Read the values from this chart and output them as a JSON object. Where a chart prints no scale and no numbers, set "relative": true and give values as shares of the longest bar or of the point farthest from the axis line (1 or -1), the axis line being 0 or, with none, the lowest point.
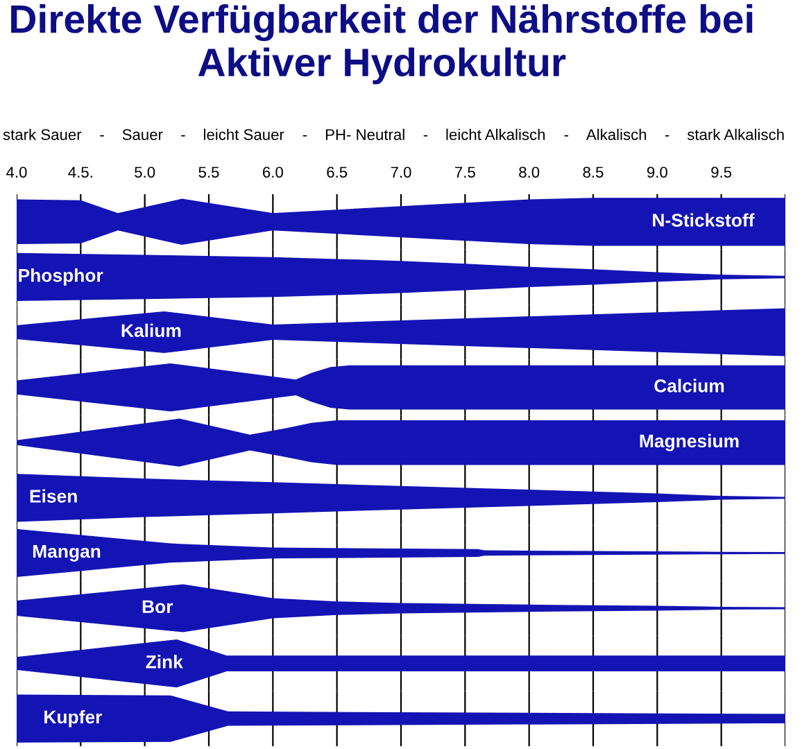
{
  "chart_data": [
    {
      "type": "area",
      "title": "Direkte Verfügbarkeit der Nährstoffe bei\nAktiver Hydrokultur",
      "relative": true,
      "x": [
        4.0,
        4.5,
        4.79,
        5.29,
        6.0,
        7.0,
        8.0,
        8.5,
        10.0
      ],
      "series": [
        {
          "name": "N-Stickstoff",
          "color": "#1414b4",
          "values": [
            0.93,
            0.9,
            0.36,
            0.96,
            0.36,
            0.65,
            0.93,
            1,
            1
          ]
        }
      ],
      "xlim": [
        4,
        10
      ],
      "xticks": [
        {
          "value": 4,
          "label": "4.0"
        },
        {
          "value": 4.5,
          "label": "4.5."
        },
        {
          "value": 5,
          "label": "5.0"
        },
        5.5,
        {
          "value": 6,
          "label": "6.0"
        },
        6.5,
        {
          "value": 7,
          "label": "7.0"
        },
        7.5,
        {
          "value": 8,
          "label": "8.0"
        },
        8.5,
        {
          "value": 9,
          "label": "9.0"
        },
        9.5,
        {
          "value": 10,
          "label": null
        }
      ],
      "grid": "x",
      "tick_labels": "x",
      "annotations": [
        "stark Sauer",
        "-",
        "Sauer",
        "-",
        "leicht Sauer",
        "-",
        "PH- Neutral",
        "-",
        "leicht Alkalisch",
        "-",
        "Alkalisch",
        "-",
        "stark Alkalisch"
      ]
    },
    {
      "type": "area",
      "relative": true,
      "x": [
        4.0,
        5.0,
        6.0,
        7.0,
        7.5,
        8.0,
        8.5,
        9.0,
        9.5,
        10.0
      ],
      "series": [
        {
          "name": "Phosphor",
          "color": "#1414b4",
          "values": [
            1,
            0.92,
            0.83,
            0.67,
            0.55,
            0.42,
            0.32,
            0.2,
            0.1,
            0.05
          ]
        }
      ],
      "xlim": [
        4,
        10
      ],
      "xticks": [
        4,
        4.5,
        5,
        5.5,
        6,
        6.5,
        7,
        7.5,
        8,
        8.5,
        9,
        9.5,
        10
      ],
      "grid": "x",
      "tick_labels": false
    },
    {
      "type": "area",
      "relative": true,
      "x": [
        4.0,
        5.15,
        6.0,
        10.0
      ],
      "series": [
        {
          "name": "Kalium",
          "color": "#1414b4",
          "values": [
            0.29,
            0.87,
            0.32,
            1
          ]
        }
      ],
      "xlim": [
        4,
        10
      ],
      "xticks": [
        4,
        4.5,
        5,
        5.5,
        6,
        6.5,
        7,
        7.5,
        8,
        8.5,
        9,
        9.5,
        10
      ],
      "grid": "x",
      "tick_labels": false
    },
    {
      "type": "area",
      "relative": true,
      "x": [
        4.0,
        5.2,
        6.18,
        6.3,
        6.45,
        6.6,
        10.0
      ],
      "series": [
        {
          "name": "Calcium",
          "color": "#1414b4",
          "values": [
            0.29,
            1,
            0.33,
            0.6,
            0.85,
            0.92,
            0.92
          ]
        }
      ],
      "xlim": [
        4,
        10
      ],
      "xticks": [
        4,
        4.5,
        5,
        5.5,
        6,
        6.5,
        7,
        7.5,
        8,
        8.5,
        9,
        9.5,
        10
      ],
      "grid": "x",
      "tick_labels": false
    },
    {
      "type": "area",
      "relative": true,
      "x": [
        4.0,
        5.27,
        5.82,
        6.1,
        6.3,
        6.5,
        10.0
      ],
      "series": [
        {
          "name": "Magnesium",
          "color": "#1414b4",
          "values": [
            0.1,
            1,
            0.33,
            0.6,
            0.82,
            0.93,
            0.93
          ]
        }
      ],
      "xlim": [
        4,
        10
      ],
      "xticks": [
        4,
        4.5,
        5,
        5.5,
        6,
        6.5,
        7,
        7.5,
        8,
        8.5,
        9,
        9.5,
        10
      ],
      "grid": "x",
      "tick_labels": false
    },
    {
      "type": "area",
      "relative": true,
      "x": [
        4.0,
        5.0,
        6.0,
        7.0,
        8.0,
        9.0,
        9.5,
        10.0
      ],
      "series": [
        {
          "name": "Eisen",
          "color": "#1414b4",
          "values": [
            1,
            0.8,
            0.65,
            0.49,
            0.34,
            0.18,
            0.08,
            0.04
          ]
        }
      ],
      "xlim": [
        4,
        10
      ],
      "xticks": [
        4,
        4.5,
        5,
        5.5,
        6,
        6.5,
        7,
        7.5,
        8,
        8.5,
        9,
        9.5,
        10
      ],
      "grid": "x",
      "tick_labels": false
    },
    {
      "type": "area",
      "relative": true,
      "x": [
        4.0,
        5.2,
        6.0,
        7.6,
        7.65,
        9.0,
        9.5,
        10.0
      ],
      "series": [
        {
          "name": "Mangan",
          "color": "#1414b4",
          "values": [
            1,
            0.4,
            0.23,
            0.16,
            0.11,
            0.07,
            0.05,
            0.04
          ]
        }
      ],
      "xlim": [
        4,
        10
      ],
      "xticks": [
        4,
        4.5,
        5,
        5.5,
        6,
        6.5,
        7,
        7.5,
        8,
        8.5,
        9,
        9.5,
        10
      ],
      "grid": "x",
      "tick_labels": false
    },
    {
      "type": "area",
      "relative": true,
      "x": [
        4.0,
        5.3,
        6.0,
        6.5,
        7.0,
        8.2,
        9.0,
        9.5,
        10.0
      ],
      "series": [
        {
          "name": "Bor",
          "color": "#1414b4",
          "values": [
            0.32,
            1,
            0.42,
            0.28,
            0.22,
            0.14,
            0.1,
            0.06,
            0.04
          ]
        }
      ],
      "xlim": [
        4,
        10
      ],
      "xticks": [
        4,
        4.5,
        5,
        5.5,
        6,
        6.5,
        7,
        7.5,
        8,
        8.5,
        9,
        9.5,
        10
      ],
      "grid": "x",
      "tick_labels": false
    },
    {
      "type": "area",
      "relative": true,
      "x": [
        4.0,
        5.25,
        5.64,
        10.0
      ],
      "series": [
        {
          "name": "Zink",
          "color": "#1414b4",
          "values": [
            0.27,
            1,
            0.33,
            0.33
          ]
        }
      ],
      "xlim": [
        4,
        10
      ],
      "xticks": [
        4,
        4.5,
        5,
        5.5,
        6,
        6.5,
        7,
        7.5,
        8,
        8.5,
        9,
        9.5,
        10
      ],
      "grid": "x",
      "tick_labels": false
    },
    {
      "type": "area",
      "relative": true,
      "x": [
        4.0,
        5.2,
        5.65,
        9.8,
        10.0
      ],
      "series": [
        {
          "name": "Kupfer",
          "color": "#1414b4",
          "values": [
            1,
            0.97,
            0.3,
            0.2,
            0.2
          ]
        }
      ],
      "xlim": [
        4,
        10
      ],
      "xticks": [
        4,
        4.5,
        5,
        5.5,
        6,
        6.5,
        7,
        7.5,
        8,
        8.5,
        9,
        9.5,
        10
      ],
      "grid": "x",
      "tick_labels": false
    }
  ]
}
